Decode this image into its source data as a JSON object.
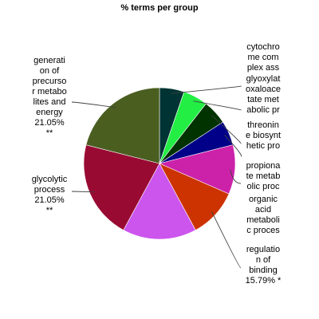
{
  "chart_data": {
    "type": "pie",
    "title": "% terms per group",
    "slices": [
      {
        "name": "cytochrome complex assembly",
        "label_lines": [
          "cytochro",
          "me com",
          "plex ass"
        ],
        "value": 5.26,
        "color": "#003333"
      },
      {
        "name": "glyoxylate oxaloacetate metabolic process",
        "label_lines": [
          "glyoxylat",
          "oxaloace",
          "tate met",
          "abolic pr"
        ],
        "value": 5.26,
        "color": "#22ee44"
      },
      {
        "name": "threonine biosynthetic process",
        "label_lines": [
          "threonin",
          "e biosynt",
          "hetic pro"
        ],
        "value": 5.26,
        "color": "#003300"
      },
      {
        "name": "propionate metabolic process",
        "label_lines": [
          "propiona",
          "te metab",
          "olic proc"
        ],
        "value": 5.26,
        "color": "#000088"
      },
      {
        "name": "organic acid metabolic process",
        "label_lines": [
          "organic",
          "acid",
          "metaboli",
          "c proces"
        ],
        "value": 10.53,
        "color": "#cc22aa"
      },
      {
        "name": "regulation of binding",
        "label_lines": [
          "regulatio",
          "n of",
          "binding",
          "15.79% *"
        ],
        "value": 10.53,
        "color": "#cc3300"
      },
      {
        "name": "regulation of binding",
        "label_lines": [],
        "value": 15.79,
        "color": "#cc55ee"
      },
      {
        "name": "glycolytic process",
        "label_lines": [
          "glycolytic",
          "process",
          "21.05%",
          "**"
        ],
        "value": 21.05,
        "color": "#990a33"
      },
      {
        "name": "generation of precursor metabolites and energy",
        "label_lines": [
          "generati",
          "on of",
          "precurso",
          "r metabo",
          "lites and",
          "energy",
          "21.05%",
          "**"
        ],
        "value": 21.05,
        "color": "#4a5e20"
      }
    ]
  }
}
